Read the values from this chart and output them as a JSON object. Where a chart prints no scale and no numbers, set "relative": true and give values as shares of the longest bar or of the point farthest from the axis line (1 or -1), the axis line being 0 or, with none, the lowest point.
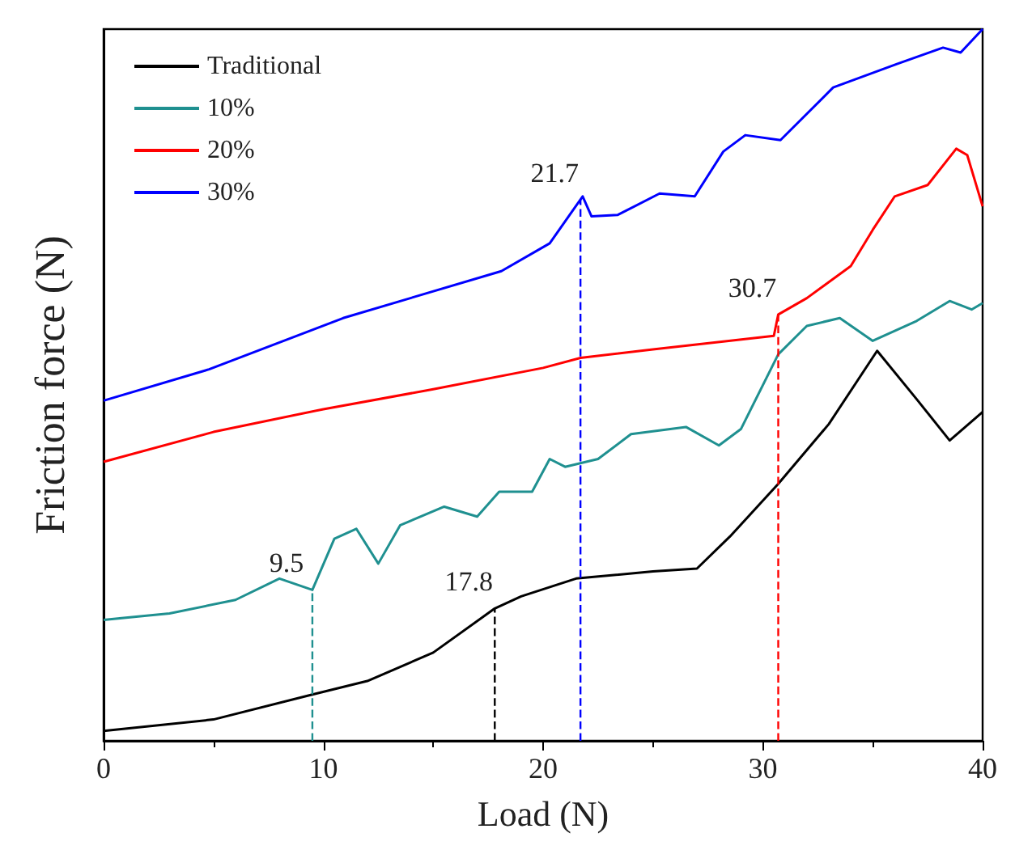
{
  "chart_data": {
    "type": "line",
    "xlabel": "Load (N)",
    "ylabel": "Friction force (N)",
    "relative": true,
    "xlim": [
      0,
      40
    ],
    "xticks": [
      0,
      10,
      20,
      30,
      40
    ],
    "grid": false,
    "legend": "top left",
    "marker": "none",
    "line_style": "solid",
    "series": [
      {
        "name": "Traditional",
        "color": "#000000",
        "x": [
          0,
          5,
          9.5,
          12,
          15,
          17.8,
          19,
          21.5,
          25,
          27,
          28.5,
          30.7,
          33,
          35.2,
          37,
          38.5,
          40
        ],
        "values": [
          0.014,
          0.03,
          0.065,
          0.084,
          0.124,
          0.186,
          0.203,
          0.228,
          0.238,
          0.242,
          0.287,
          0.361,
          0.445,
          0.548,
          0.48,
          0.422,
          0.462
        ]
      },
      {
        "name": "10%",
        "color": "#1f9090",
        "x": [
          0,
          3,
          6,
          8,
          9.5,
          10.5,
          11.5,
          12.5,
          13.5,
          15.5,
          17,
          18,
          19.5,
          20.3,
          21,
          22.5,
          24,
          26.5,
          28,
          29,
          30.7,
          32,
          33.5,
          35,
          37,
          38.5,
          39.5,
          40
        ],
        "values": [
          0.17,
          0.179,
          0.198,
          0.228,
          0.212,
          0.284,
          0.298,
          0.249,
          0.303,
          0.329,
          0.315,
          0.35,
          0.35,
          0.396,
          0.385,
          0.396,
          0.431,
          0.441,
          0.415,
          0.438,
          0.543,
          0.583,
          0.594,
          0.562,
          0.59,
          0.618,
          0.606,
          0.615
        ]
      },
      {
        "name": "20%",
        "color": "#ff0000",
        "x": [
          0,
          5,
          10,
          15,
          20,
          21.7,
          25,
          30.5,
          30.7,
          32,
          34,
          35,
          36,
          37.5,
          38.8,
          39.3,
          40
        ],
        "values": [
          0.392,
          0.434,
          0.466,
          0.494,
          0.524,
          0.538,
          0.55,
          0.569,
          0.599,
          0.622,
          0.667,
          0.718,
          0.765,
          0.781,
          0.832,
          0.823,
          0.751
        ]
      },
      {
        "name": "30%",
        "color": "#0000ff",
        "x": [
          0,
          4.8,
          10.9,
          18.1,
          20.3,
          21.8,
          22.2,
          23.4,
          25.3,
          26.9,
          28.2,
          29.2,
          30.8,
          33.2,
          36.1,
          38.2,
          39,
          40
        ],
        "values": [
          0.478,
          0.522,
          0.594,
          0.66,
          0.699,
          0.765,
          0.737,
          0.739,
          0.769,
          0.765,
          0.828,
          0.851,
          0.844,
          0.918,
          0.951,
          0.974,
          0.967,
          1
        ]
      }
    ],
    "ref_lines": [
      {
        "axis": "x",
        "value": 9.5,
        "label": "9.5",
        "color": "#1f9090",
        "line_style": "dashed"
      },
      {
        "axis": "x",
        "value": 17.8,
        "label": "17.8",
        "color": "#000000",
        "line_style": "dashed"
      },
      {
        "axis": "x",
        "value": 21.7,
        "label": "21.7",
        "color": "#0000ff",
        "line_style": "dashed"
      },
      {
        "axis": "x",
        "value": 30.7,
        "label": "30.7",
        "color": "#ff0000",
        "line_style": "dashed"
      }
    ]
  }
}
